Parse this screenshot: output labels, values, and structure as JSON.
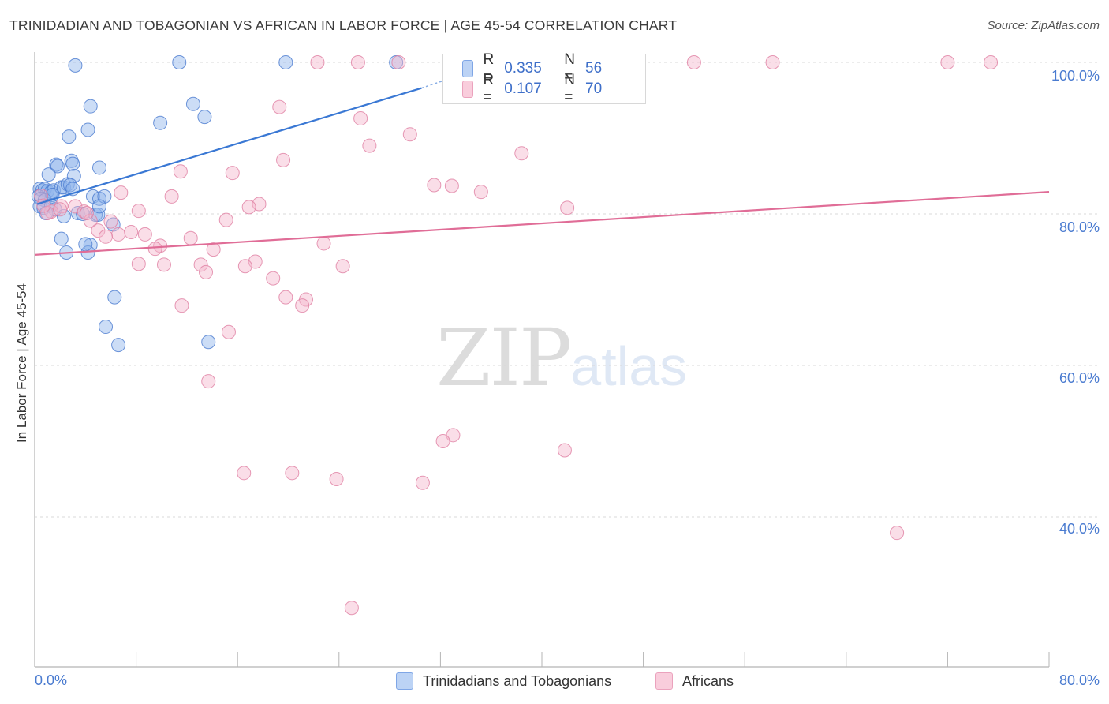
{
  "title": "TRINIDADIAN AND TOBAGONIAN VS AFRICAN IN LABOR FORCE | AGE 45-54 CORRELATION CHART",
  "source": "Source: ZipAtlas.com",
  "watermark": {
    "zip": "ZIP",
    "atlas": "atlas"
  },
  "legend_top": {
    "r_label": "R =",
    "n_label": "N =",
    "rows": [
      {
        "series": "Trinidadians and Tobagonians",
        "r": "0.335",
        "n": "56"
      },
      {
        "series": "Africans",
        "r": "0.107",
        "n": "70"
      }
    ]
  },
  "chart_data": {
    "type": "scatter",
    "title": "TRINIDADIAN AND TOBAGONIAN VS AFRICAN IN LABOR FORCE | AGE 45-54 CORRELATION CHART",
    "xlabel": "",
    "ylabel": "In Labor Force | Age 45-54",
    "xlim": [
      0,
      80
    ],
    "ylim": [
      21,
      101
    ],
    "x_tick_labels": [
      "0.0%",
      "80.0%"
    ],
    "y_ticks": [
      40,
      60,
      80,
      100
    ],
    "y_tick_labels": [
      "40.0%",
      "60.0%",
      "80.0%",
      "100.0%"
    ],
    "grid": true,
    "legend_position": "bottom",
    "series": [
      {
        "name": "Trinidadians and Tobagonians",
        "color": "#8fb3ec",
        "edge": "#4a7bd0",
        "trend": {
          "x": [
            0.2,
            30.5
          ],
          "y": [
            81.3,
            96.6
          ],
          "dashed_to": [
            33.5,
            98.3
          ],
          "color": "#3a78d4"
        },
        "points": [
          [
            3.2,
            99.6
          ],
          [
            11.4,
            100
          ],
          [
            19.8,
            100
          ],
          [
            28.5,
            100
          ],
          [
            4.4,
            94.2
          ],
          [
            12.5,
            94.5
          ],
          [
            13.4,
            92.8
          ],
          [
            4.2,
            91.1
          ],
          [
            9.9,
            92.0
          ],
          [
            2.7,
            90.2
          ],
          [
            1.7,
            86.5
          ],
          [
            1.8,
            86.3
          ],
          [
            2.9,
            87.0
          ],
          [
            3.0,
            86.6
          ],
          [
            5.1,
            86.1
          ],
          [
            1.1,
            85.2
          ],
          [
            3.1,
            85.0
          ],
          [
            0.4,
            83.3
          ],
          [
            0.6,
            83.1
          ],
          [
            0.8,
            83.3
          ],
          [
            1.0,
            83.0
          ],
          [
            1.3,
            82.9
          ],
          [
            1.5,
            83.1
          ],
          [
            2.1,
            83.5
          ],
          [
            2.3,
            83.5
          ],
          [
            2.6,
            83.9
          ],
          [
            2.8,
            83.8
          ],
          [
            3.0,
            83.3
          ],
          [
            0.3,
            82.3
          ],
          [
            0.5,
            82.0
          ],
          [
            0.8,
            81.8
          ],
          [
            1.4,
            82.5
          ],
          [
            4.6,
            82.3
          ],
          [
            5.1,
            82.0
          ],
          [
            5.5,
            82.3
          ],
          [
            0.4,
            81.0
          ],
          [
            0.7,
            80.8
          ],
          [
            1.3,
            81.1
          ],
          [
            1.6,
            80.6
          ],
          [
            0.9,
            80.1
          ],
          [
            3.4,
            80.1
          ],
          [
            3.8,
            80.0
          ],
          [
            4.8,
            79.9
          ],
          [
            5.0,
            79.9
          ],
          [
            5.1,
            81.0
          ],
          [
            2.3,
            79.7
          ],
          [
            6.2,
            78.6
          ],
          [
            2.1,
            76.7
          ],
          [
            4.4,
            75.9
          ],
          [
            2.5,
            74.9
          ],
          [
            4.2,
            74.9
          ],
          [
            6.3,
            69.0
          ],
          [
            5.6,
            65.1
          ],
          [
            6.6,
            62.7
          ],
          [
            13.7,
            63.1
          ],
          [
            4.0,
            76.0
          ]
        ]
      },
      {
        "name": "Africans",
        "color": "#f5b6cb",
        "edge": "#e07fa2",
        "trend": {
          "x": [
            0,
            80
          ],
          "y": [
            74.6,
            82.9
          ],
          "color": "#e06d97"
        },
        "points": [
          [
            22.3,
            100
          ],
          [
            25.5,
            100
          ],
          [
            28.7,
            100
          ],
          [
            43.3,
            100
          ],
          [
            52.0,
            100
          ],
          [
            58.2,
            100
          ],
          [
            72.0,
            100
          ],
          [
            75.4,
            100
          ],
          [
            19.3,
            94.1
          ],
          [
            25.7,
            92.6
          ],
          [
            29.6,
            90.5
          ],
          [
            26.4,
            89.0
          ],
          [
            38.4,
            88.0
          ],
          [
            19.6,
            87.1
          ],
          [
            11.5,
            85.6
          ],
          [
            15.6,
            85.4
          ],
          [
            31.5,
            83.8
          ],
          [
            32.9,
            83.7
          ],
          [
            35.2,
            82.9
          ],
          [
            6.8,
            82.8
          ],
          [
            10.8,
            82.3
          ],
          [
            17.7,
            81.3
          ],
          [
            16.9,
            80.9
          ],
          [
            42.0,
            80.8
          ],
          [
            2.1,
            81.0
          ],
          [
            3.2,
            81.0
          ],
          [
            8.2,
            80.4
          ],
          [
            1.3,
            80.3
          ],
          [
            3.9,
            80.3
          ],
          [
            2.0,
            80.6
          ],
          [
            15.1,
            79.2
          ],
          [
            4.4,
            79.1
          ],
          [
            6.0,
            79.0
          ],
          [
            4.1,
            80.1
          ],
          [
            5.0,
            77.8
          ],
          [
            7.6,
            77.6
          ],
          [
            6.6,
            77.3
          ],
          [
            8.7,
            77.3
          ],
          [
            5.6,
            77.0
          ],
          [
            12.3,
            76.8
          ],
          [
            9.9,
            75.8
          ],
          [
            22.8,
            76.1
          ],
          [
            9.5,
            75.4
          ],
          [
            14.1,
            75.3
          ],
          [
            8.2,
            73.4
          ],
          [
            10.2,
            73.3
          ],
          [
            13.1,
            73.3
          ],
          [
            17.4,
            73.7
          ],
          [
            24.3,
            73.1
          ],
          [
            16.6,
            73.1
          ],
          [
            13.5,
            72.3
          ],
          [
            18.8,
            71.5
          ],
          [
            11.6,
            67.9
          ],
          [
            19.8,
            69.0
          ],
          [
            21.4,
            68.7
          ],
          [
            21.1,
            67.9
          ],
          [
            15.3,
            64.4
          ],
          [
            13.7,
            57.9
          ],
          [
            33.0,
            50.8
          ],
          [
            32.2,
            50.0
          ],
          [
            41.8,
            48.8
          ],
          [
            16.5,
            45.8
          ],
          [
            20.3,
            45.8
          ],
          [
            23.8,
            45.0
          ],
          [
            30.6,
            44.5
          ],
          [
            68.0,
            37.9
          ],
          [
            25.0,
            28.0
          ],
          [
            0.5,
            82.4
          ],
          [
            1.0,
            80.1
          ],
          [
            0.7,
            81.1
          ]
        ]
      }
    ]
  }
}
